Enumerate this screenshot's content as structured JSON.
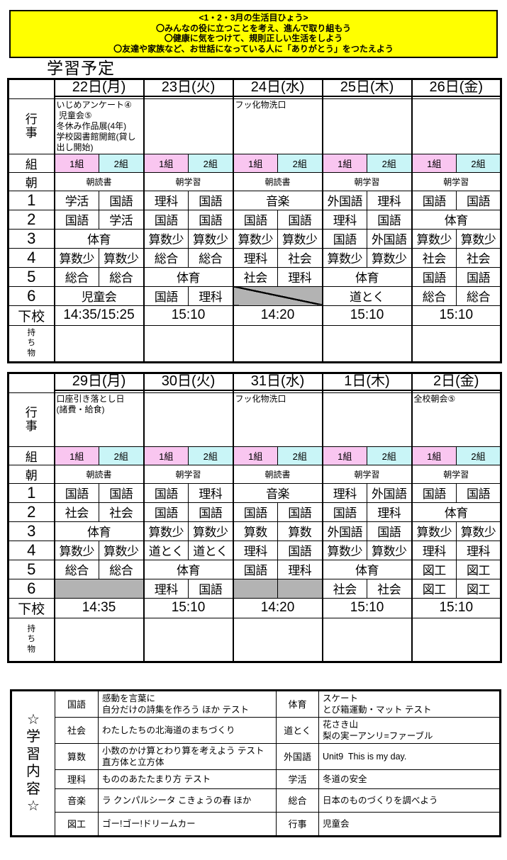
{
  "banner": {
    "line1": "<1・2・3月の生活目ひょう>",
    "line2": "〇みんなの役に立つことを考え、進んで取り組もう",
    "line3": "〇健康に気をつけて、規則正しい生活をしよう",
    "line4": "〇友達や家族など、お世話になっている人に「ありがとう」をつたえよう"
  },
  "page_title": "学習予定",
  "labels": {
    "events": "行\n事",
    "class_row": "組",
    "class1": "1組",
    "class2": "2組",
    "morning": "朝",
    "period_numbers": [
      "1",
      "2",
      "3",
      "4",
      "5",
      "6"
    ],
    "dismissal": "下校",
    "belongings": "持\nち\n物"
  },
  "colors": {
    "class1_bg": "#F9C6F0",
    "class2_bg": "#C9F5F7",
    "gray": "#B3B3B3",
    "banner_bg": "#FFFF00"
  },
  "week1": {
    "dates": [
      "22日(月)",
      "23日(火)",
      "24日(水)",
      "25日(木)",
      "26日(金)"
    ],
    "events": [
      "いじめアンケート④\n 児童会⑤\n冬休み作品展(4年)\n学校図書館開館(貸し出し開始)",
      "",
      "フッ化物洗口",
      "",
      ""
    ],
    "morning": [
      "朝読書",
      "朝学習",
      "朝読書",
      "朝学習",
      "朝学習"
    ],
    "periods": [
      [
        {
          "t": "split",
          "a": "学活",
          "b": "国語"
        },
        {
          "t": "split",
          "a": "理科",
          "b": "国語"
        },
        {
          "t": "merge",
          "a": "音楽"
        },
        {
          "t": "split",
          "a": "外国語",
          "b": "理科"
        },
        {
          "t": "split",
          "a": "国語",
          "b": "国語"
        }
      ],
      [
        {
          "t": "split",
          "a": "国語",
          "b": "学活"
        },
        {
          "t": "split",
          "a": "国語",
          "b": "国語"
        },
        {
          "t": "split",
          "a": "国語",
          "b": "国語"
        },
        {
          "t": "split",
          "a": "理科",
          "b": "国語"
        },
        {
          "t": "merge",
          "a": "体育"
        }
      ],
      [
        {
          "t": "merge",
          "a": "体育"
        },
        {
          "t": "split",
          "a": "算数少",
          "b": "算数少"
        },
        {
          "t": "split",
          "a": "算数少",
          "b": "算数少"
        },
        {
          "t": "split",
          "a": "国語",
          "b": "外国語"
        },
        {
          "t": "split",
          "a": "算数少",
          "b": "算数少"
        }
      ],
      [
        {
          "t": "split",
          "a": "算数少",
          "b": "算数少"
        },
        {
          "t": "split",
          "a": "総合",
          "b": "総合"
        },
        {
          "t": "split",
          "a": "理科",
          "b": "社会"
        },
        {
          "t": "split",
          "a": "算数少",
          "b": "算数少"
        },
        {
          "t": "split",
          "a": "社会",
          "b": "社会"
        }
      ],
      [
        {
          "t": "split",
          "a": "総合",
          "b": "総合"
        },
        {
          "t": "merge",
          "a": "体育"
        },
        {
          "t": "split",
          "a": "社会",
          "b": "理科"
        },
        {
          "t": "merge",
          "a": "体育"
        },
        {
          "t": "split",
          "a": "国語",
          "b": "国語"
        }
      ],
      [
        {
          "t": "merge",
          "a": "児童会"
        },
        {
          "t": "split",
          "a": "国語",
          "b": "理科"
        },
        {
          "t": "grayDiag"
        },
        {
          "t": "merge",
          "a": "道とく"
        },
        {
          "t": "split",
          "a": "総合",
          "b": "総合"
        }
      ]
    ],
    "dismissal": [
      "14:35/15:25",
      "15:10",
      "14:20",
      "15:10",
      "15:10"
    ],
    "belongings": [
      "",
      "",
      "",
      "",
      ""
    ]
  },
  "week2": {
    "dates": [
      "29日(月)",
      "30日(火)",
      "31日(水)",
      "1日(木)",
      "2日(金)"
    ],
    "events": [
      "口座引き落とし日\n(諸費・給食)",
      "",
      "フッ化物洗口",
      "",
      "全校朝会⑤"
    ],
    "morning": [
      "朝読書",
      "朝学習",
      "朝読書",
      "朝学習",
      "朝学習"
    ],
    "periods": [
      [
        {
          "t": "split",
          "a": "国語",
          "b": "国語"
        },
        {
          "t": "split",
          "a": "国語",
          "b": "理科"
        },
        {
          "t": "merge",
          "a": "音楽"
        },
        {
          "t": "split",
          "a": "理科",
          "b": "外国語"
        },
        {
          "t": "split",
          "a": "国語",
          "b": "国語"
        }
      ],
      [
        {
          "t": "split",
          "a": "社会",
          "b": "社会"
        },
        {
          "t": "split",
          "a": "国語",
          "b": "国語"
        },
        {
          "t": "split",
          "a": "国語",
          "b": "国語"
        },
        {
          "t": "split",
          "a": "国語",
          "b": "理科"
        },
        {
          "t": "merge",
          "a": "体育"
        }
      ],
      [
        {
          "t": "merge",
          "a": "体育"
        },
        {
          "t": "split",
          "a": "算数少",
          "b": "算数少"
        },
        {
          "t": "split",
          "a": "算数",
          "b": "算数"
        },
        {
          "t": "split",
          "a": "外国語",
          "b": "国語"
        },
        {
          "t": "split",
          "a": "算数少",
          "b": "算数少"
        }
      ],
      [
        {
          "t": "split",
          "a": "算数少",
          "b": "算数少"
        },
        {
          "t": "split",
          "a": "道とく",
          "b": "道とく"
        },
        {
          "t": "split",
          "a": "理科",
          "b": "国語"
        },
        {
          "t": "split",
          "a": "算数少",
          "b": "算数少"
        },
        {
          "t": "split",
          "a": "理科",
          "b": "理科"
        }
      ],
      [
        {
          "t": "split",
          "a": "総合",
          "b": "総合"
        },
        {
          "t": "merge",
          "a": "体育"
        },
        {
          "t": "split",
          "a": "国語",
          "b": "理科"
        },
        {
          "t": "merge",
          "a": "体育"
        },
        {
          "t": "split",
          "a": "図工",
          "b": "図工"
        }
      ],
      [
        {
          "t": "grayMerge"
        },
        {
          "t": "split",
          "a": "理科",
          "b": "国語"
        },
        {
          "t": "graySplit"
        },
        {
          "t": "split",
          "a": "社会",
          "b": "社会"
        },
        {
          "t": "split",
          "a": "図工",
          "b": "図工"
        }
      ]
    ],
    "dismissal": [
      "14:35",
      "15:10",
      "14:20",
      "15:10",
      "15:10"
    ],
    "belongings": [
      "",
      "",
      "",
      "",
      ""
    ]
  },
  "content": {
    "title": "☆\n学\n習\n内\n容\n☆",
    "rows": [
      {
        "s1": "国語",
        "c1": "感動を言葉に\n自分だけの詩集を作ろう ほか テスト",
        "s2": "体育",
        "c2": "スケート\nとび箱運動・マット テスト"
      },
      {
        "s1": "社会",
        "c1": "わたしたちの北海道のまちづくり",
        "s2": "道とく",
        "c2": "花さき山\n梨の実ーアンリ=ファーブル"
      },
      {
        "s1": "算数",
        "c1": "小数のかけ算とわり算を考えよう テスト\n直方体と立方体",
        "s2": "外国語",
        "c2": "Unit9  This is my day."
      },
      {
        "s1": "理科",
        "c1": "もののあたたまり方 テスト",
        "s2": "学活",
        "c2": "冬道の安全"
      },
      {
        "s1": "音楽",
        "c1": "ラ クンパルシータ こきょうの春 ほか",
        "s2": "総合",
        "c2": "日本のものづくりを調べよう"
      },
      {
        "s1": "図工",
        "c1": "ゴー!ゴー!ドリームカー",
        "s2": "行事",
        "c2": "児童会"
      }
    ]
  }
}
